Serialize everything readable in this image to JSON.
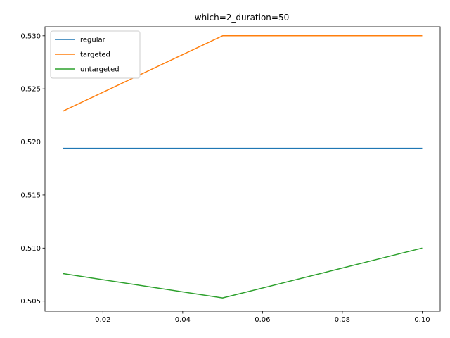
{
  "chart_data": {
    "type": "line",
    "title": "which=2_duration=50",
    "xlabel": "",
    "ylabel": "",
    "x": [
      0.01,
      0.05,
      0.1
    ],
    "xlim": [
      0.0055,
      0.1045
    ],
    "ylim": [
      0.50405,
      0.53085
    ],
    "xticks": [
      0.02,
      0.04,
      0.06,
      0.08,
      0.1
    ],
    "xtick_labels": [
      "0.02",
      "0.04",
      "0.06",
      "0.08",
      "0.10"
    ],
    "yticks": [
      0.505,
      0.51,
      0.515,
      0.52,
      0.525,
      0.53
    ],
    "ytick_labels": [
      "0.505",
      "0.510",
      "0.515",
      "0.520",
      "0.525",
      "0.530"
    ],
    "grid": false,
    "legend_position": "upper-left",
    "series": [
      {
        "name": "regular",
        "color": "#1f77b4",
        "values": [
          0.5194,
          0.5194,
          0.5194
        ]
      },
      {
        "name": "targeted",
        "color": "#ff7f0e",
        "values": [
          0.5229,
          0.53,
          0.53
        ]
      },
      {
        "name": "untargeted",
        "color": "#2ca02c",
        "values": [
          0.5076,
          0.5053,
          0.51
        ]
      }
    ]
  }
}
